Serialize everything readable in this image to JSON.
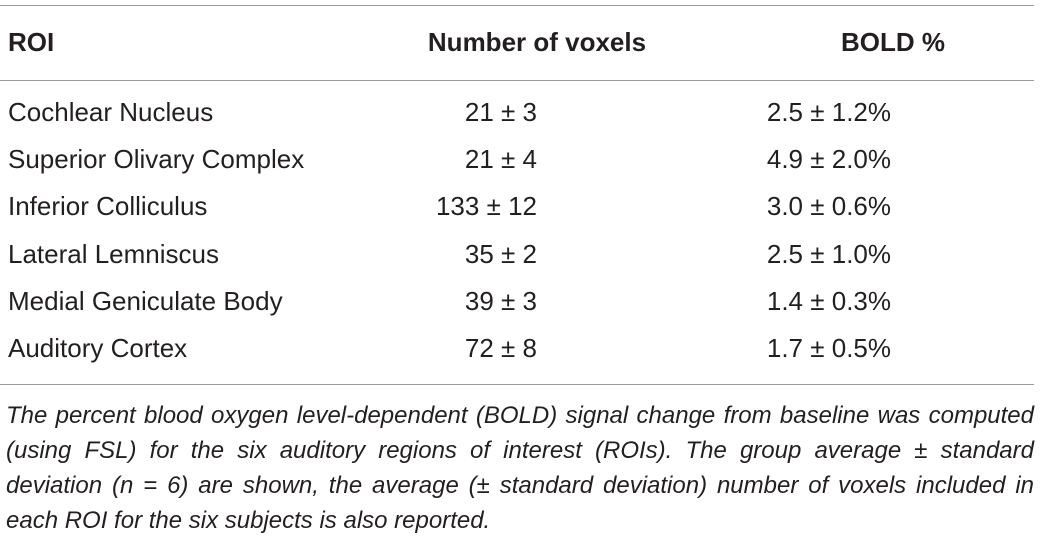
{
  "table": {
    "header": [
      "ROI",
      "Number of voxels",
      "BOLD %"
    ],
    "rows": [
      [
        "Cochlear Nucleus",
        "21 ± 3",
        "2.5 ± 1.2%"
      ],
      [
        "Superior Olivary Complex",
        "21 ± 4",
        "4.9 ± 2.0%"
      ],
      [
        "Inferior Colliculus",
        "133 ± 12",
        "3.0 ± 0.6%"
      ],
      [
        "Lateral Lemniscus",
        "35 ± 2",
        "2.5 ± 1.0%"
      ],
      [
        "Medial Geniculate Body",
        "39 ± 3",
        "1.4 ± 0.3%"
      ],
      [
        "Auditory Cortex",
        "72 ± 8",
        "1.7 ± 0.5%"
      ]
    ],
    "footnote": "The percent blood oxygen level-dependent (BOLD) signal change from baseline was computed (using FSL) for the six auditory regions of interest (ROIs). The group average ± standard deviation (n = 6) are shown, the average (± standard deviation) number of voxels included in each ROI for the six subjects is also reported."
  }
}
